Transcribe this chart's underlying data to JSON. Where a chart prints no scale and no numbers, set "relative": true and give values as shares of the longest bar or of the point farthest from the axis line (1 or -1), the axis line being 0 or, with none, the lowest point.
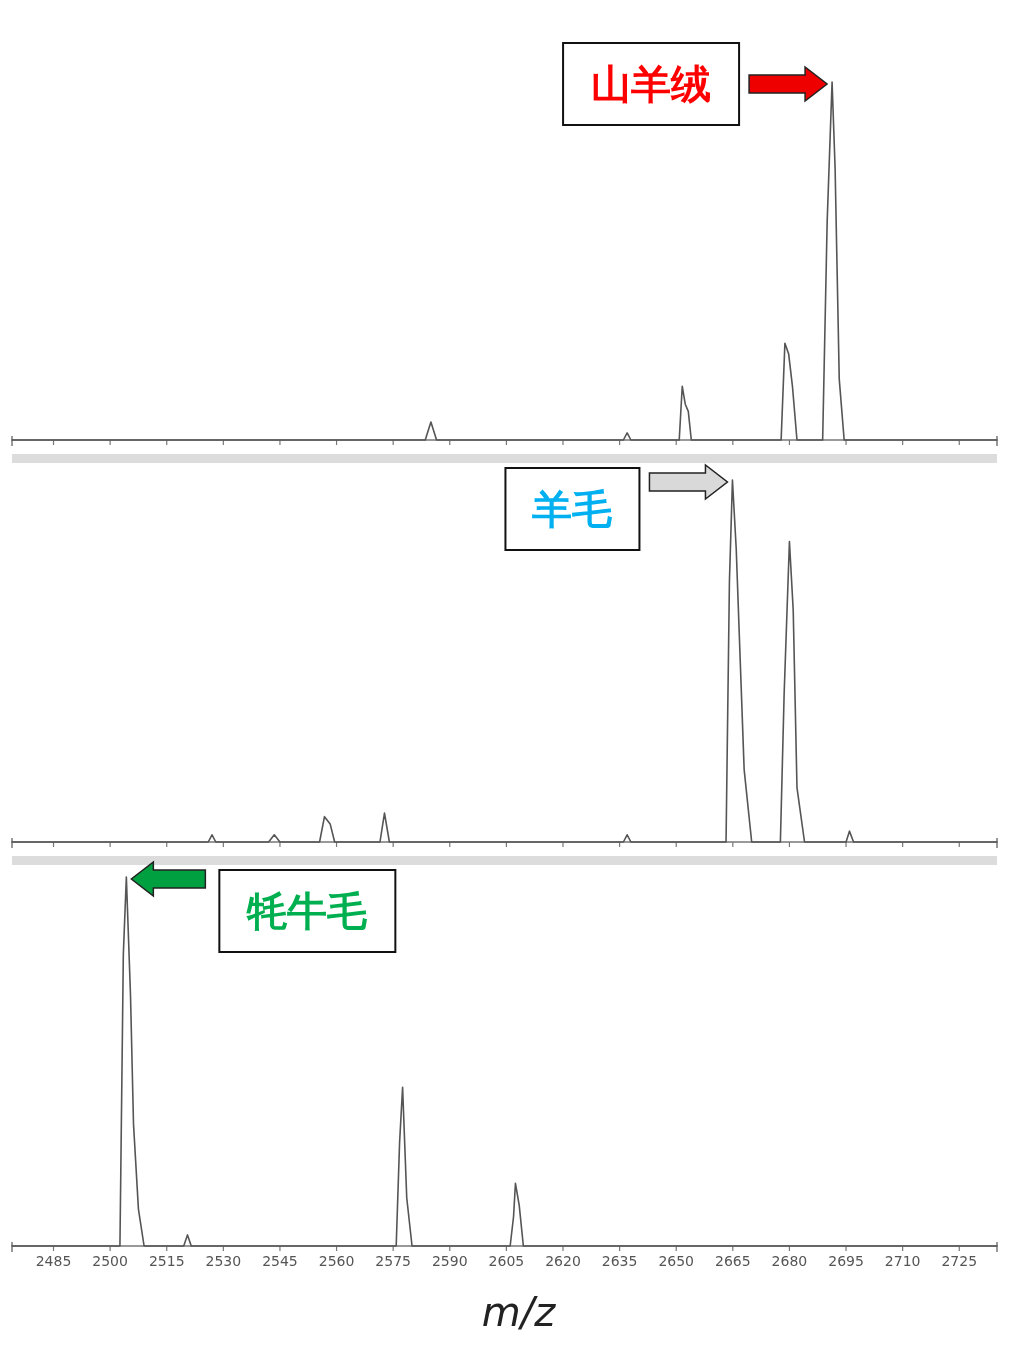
{
  "chart_data": [
    {
      "type": "line",
      "relative": true,
      "xlim": [
        2474,
        2735
      ],
      "xticks": [
        2485,
        2500,
        2515,
        2530,
        2545,
        2560,
        2575,
        2590,
        2605,
        2620,
        2635,
        2650,
        2665,
        2680,
        2695,
        2710,
        2725
      ],
      "tick_labels": false,
      "series": [
        {
          "color": "#555555",
          "x": [
            2474,
            2583.5,
            2585,
            2586.5,
            2636,
            2637,
            2638,
            2650.8,
            2651.6,
            2652.4,
            2653.2,
            2654,
            2677.8,
            2678.8,
            2679.8,
            2680.8,
            2682,
            2688.8,
            2690,
            2691.3,
            2692.1,
            2693.2,
            2694.5,
            2735
          ],
          "values": [
            0,
            0,
            0.05,
            0,
            0,
            0.02,
            0,
            0,
            0.15,
            0.1,
            0.08,
            0,
            0,
            0.27,
            0.24,
            0.15,
            0,
            0,
            0.61,
            1,
            0.76,
            0.17,
            0,
            0
          ]
        }
      ],
      "annotations": [
        "山羊绒"
      ]
    },
    {
      "type": "line",
      "relative": true,
      "xlim": [
        2474,
        2735
      ],
      "xticks": [
        2485,
        2500,
        2515,
        2530,
        2545,
        2560,
        2575,
        2590,
        2605,
        2620,
        2635,
        2650,
        2665,
        2680,
        2695,
        2710,
        2725
      ],
      "tick_labels": false,
      "series": [
        {
          "color": "#555555",
          "x": [
            2474,
            2526,
            2527,
            2528,
            2542,
            2543.5,
            2545,
            2555.5,
            2556.8,
            2558.3,
            2559.5,
            2571.5,
            2572.7,
            2574,
            2636,
            2637,
            2638,
            2663.2,
            2664.1,
            2664.9,
            2665.9,
            2667,
            2668,
            2670,
            2677.6,
            2678.6,
            2680,
            2681,
            2682,
            2684,
            2695,
            2695.9,
            2697,
            2735
          ],
          "values": [
            0,
            0,
            0.02,
            0,
            0,
            0.02,
            0,
            0,
            0.07,
            0.05,
            0,
            0,
            0.08,
            0,
            0,
            0.02,
            0,
            0,
            0.72,
            1,
            0.81,
            0.49,
            0.2,
            0,
            0,
            0.41,
            0.83,
            0.64,
            0.15,
            0,
            0,
            0.03,
            0,
            0
          ]
        }
      ],
      "annotations": [
        "羊毛"
      ]
    },
    {
      "type": "line",
      "relative": true,
      "xlim": [
        2474,
        2735
      ],
      "xticks": [
        2485,
        2500,
        2515,
        2530,
        2545,
        2560,
        2575,
        2590,
        2605,
        2620,
        2635,
        2650,
        2665,
        2680,
        2695,
        2710,
        2725
      ],
      "tick_labels": "x",
      "xlabel": "m/z",
      "series": [
        {
          "color": "#555555",
          "x": [
            2474,
            2502.6,
            2503.5,
            2504.3,
            2505.4,
            2506.2,
            2507.5,
            2509,
            2519.5,
            2520.5,
            2521.5,
            2575.8,
            2576.7,
            2577.5,
            2578.6,
            2580,
            2606,
            2606.9,
            2607.4,
            2608.4,
            2609.5,
            2735
          ],
          "values": [
            0,
            0,
            0.79,
            1,
            0.68,
            0.33,
            0.1,
            0,
            0,
            0.03,
            0,
            0,
            0.28,
            0.43,
            0.13,
            0,
            0,
            0.08,
            0.17,
            0.11,
            0,
            0
          ]
        }
      ],
      "annotations": [
        "牦牛毛"
      ]
    }
  ]
}
